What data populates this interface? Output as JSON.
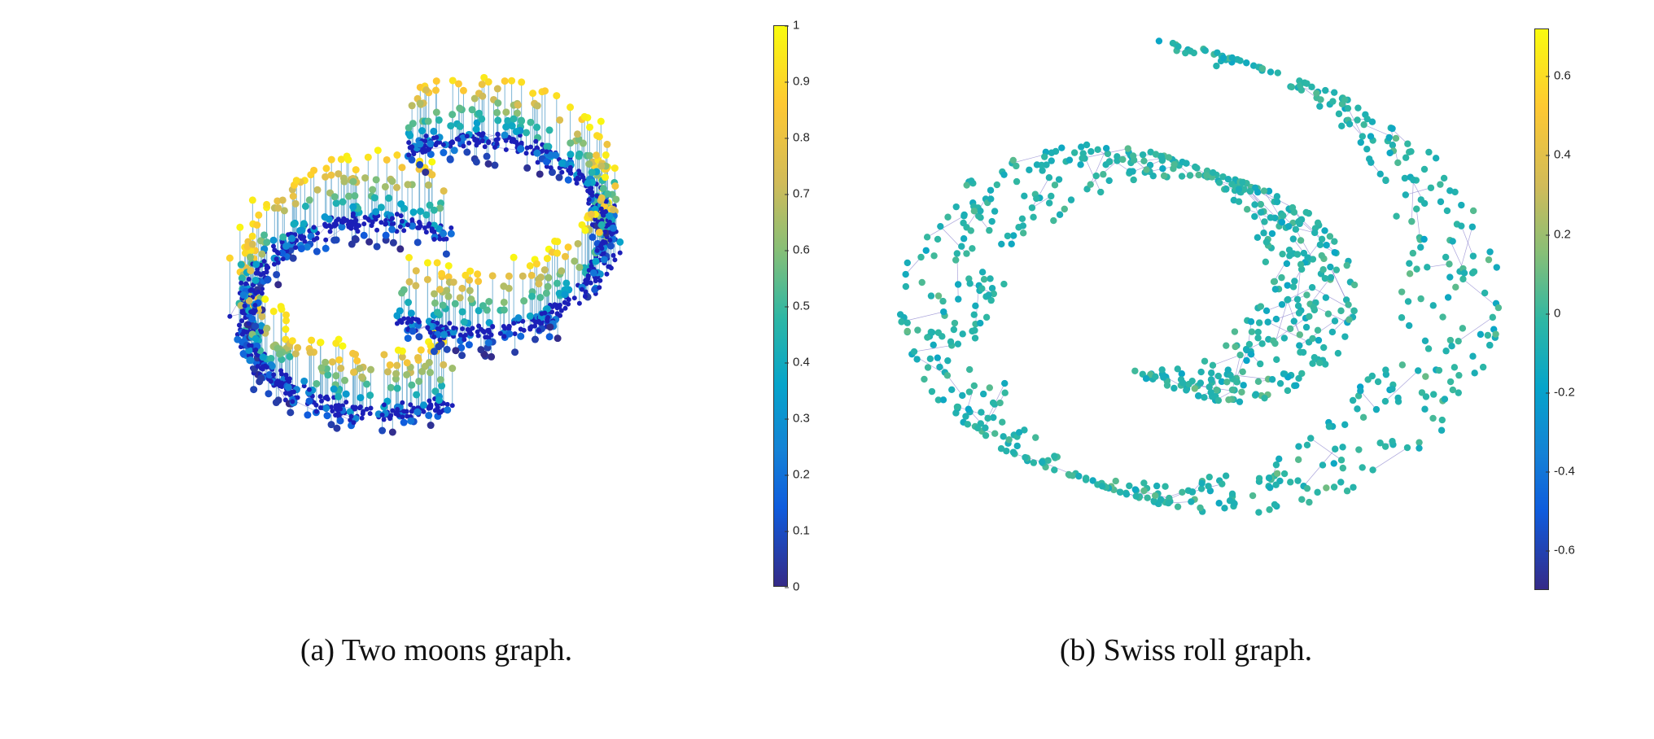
{
  "figure": {
    "subfigures": [
      {
        "id": "a",
        "caption": "(a) Two moons graph.",
        "colorbar": {
          "range": [
            0,
            1
          ],
          "ticks": [
            "0",
            "0.1",
            "0.2",
            "0.3",
            "0.4",
            "0.5",
            "0.6",
            "0.7",
            "0.8",
            "0.9",
            "1"
          ]
        }
      },
      {
        "id": "b",
        "caption": "(b) Swiss roll graph.",
        "colorbar": {
          "range": [
            -0.7,
            0.72
          ],
          "ticks": [
            "-0.6",
            "-0.4",
            "-0.2",
            "0",
            "0.2",
            "0.4",
            "0.6"
          ]
        }
      }
    ]
  },
  "colormap": [
    "#352a87",
    "#0f5cdd",
    "#1481d6",
    "#06a4ca",
    "#2eb7a4",
    "#87bf77",
    "#d1bb59",
    "#fec832",
    "#f9fb0e"
  ],
  "edge_color": "#8e86cf"
}
